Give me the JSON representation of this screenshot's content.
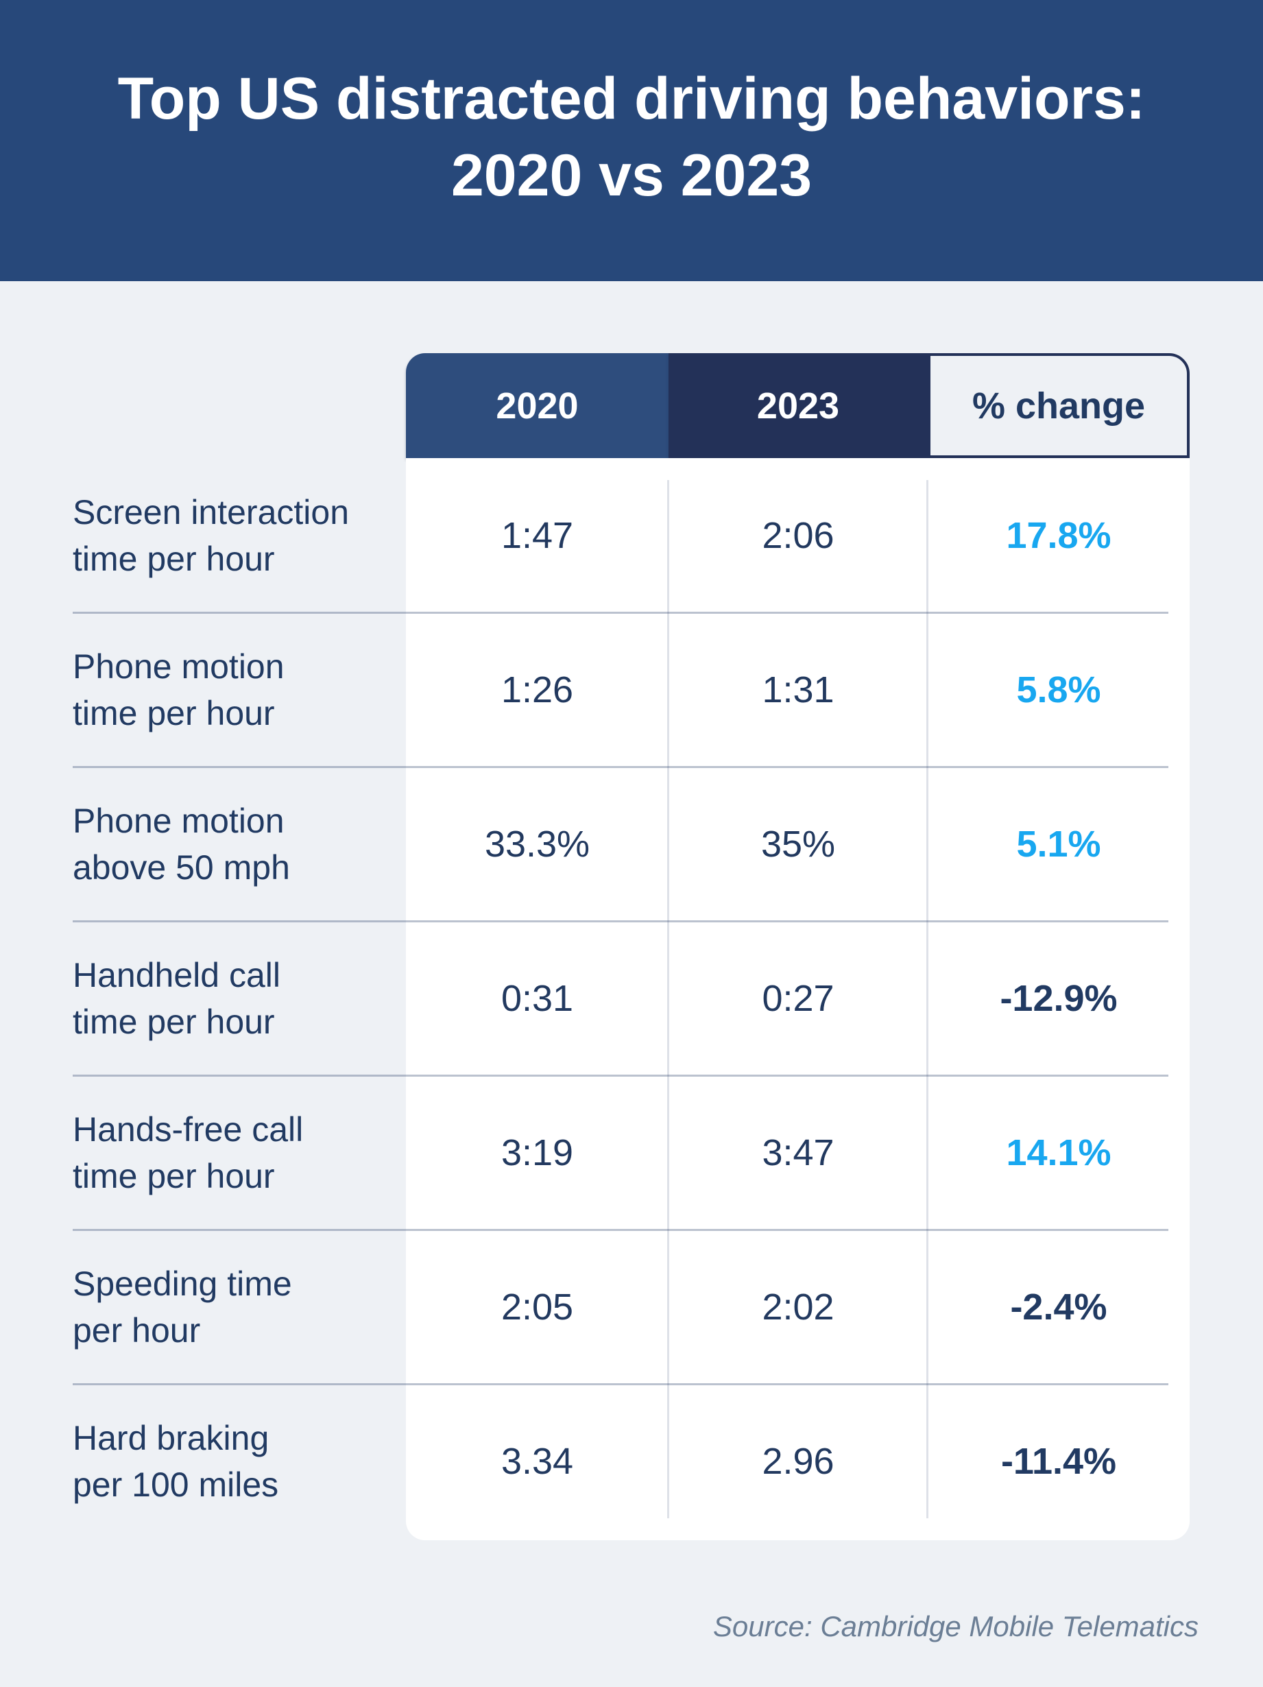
{
  "header": {
    "title": "Top US distracted driving behaviors:\n2020 vs 2023"
  },
  "table": {
    "columns": [
      "2020",
      "2023",
      "% change"
    ],
    "rows": [
      {
        "label": "Screen interaction\ntime per hour",
        "y2020": "1:47",
        "y2023": "2:06",
        "change": "17.8%"
      },
      {
        "label": "Phone motion\ntime per hour",
        "y2020": "1:26",
        "y2023": "1:31",
        "change": "5.8%"
      },
      {
        "label": "Phone motion\nabove 50 mph",
        "y2020": "33.3%",
        "y2023": "35%",
        "change": "5.1%"
      },
      {
        "label": "Handheld call\ntime per hour",
        "y2020": "0:31",
        "y2023": "0:27",
        "change": "-12.9%"
      },
      {
        "label": "Hands-free call\ntime per hour",
        "y2020": "3:19",
        "y2023": "3:47",
        "change": "14.1%"
      },
      {
        "label": "Speeding time\nper hour",
        "y2020": "2:05",
        "y2023": "2:02",
        "change": "-2.4%"
      },
      {
        "label": "Hard braking\nper 100 miles",
        "y2020": "3.34",
        "y2023": "2.96",
        "change": "-11.4%"
      }
    ]
  },
  "source": "Source: Cambridge Mobile Telematics",
  "colors": {
    "banner_bg": "#27487A",
    "col_2020_bg": "#2E4D7D",
    "col_2023_bg": "#233158",
    "change_header_bg": "#EEF1F5",
    "page_bg": "#EEF1F5",
    "body_bg": "#FFFFFF",
    "text_navy": "#213A62",
    "positive_change": "#18A7F0",
    "negative_change": "#213A62",
    "source_text": "#6B7E95"
  },
  "chart_data": {
    "type": "table",
    "title": "Top US distracted driving behaviors: 2020 vs 2023",
    "categories": [
      "Screen interaction time per hour",
      "Phone motion time per hour",
      "Phone motion above 50 mph",
      "Handheld call time per hour",
      "Hands-free call time per hour",
      "Speeding time per hour",
      "Hard braking per 100 miles"
    ],
    "series": [
      {
        "name": "2020",
        "values": [
          "1:47",
          "1:26",
          "33.3%",
          "0:31",
          "3:19",
          "2:05",
          "3.34"
        ]
      },
      {
        "name": "2023",
        "values": [
          "2:06",
          "1:31",
          "35%",
          "0:27",
          "3:47",
          "2:02",
          "2.96"
        ]
      },
      {
        "name": "% change",
        "values": [
          17.8,
          5.8,
          5.1,
          -12.9,
          14.1,
          -2.4,
          -11.4
        ]
      }
    ],
    "notes": "Positive % change shown in light blue, negative % change shown in dark navy",
    "source": "Source: Cambridge Mobile Telematics"
  }
}
